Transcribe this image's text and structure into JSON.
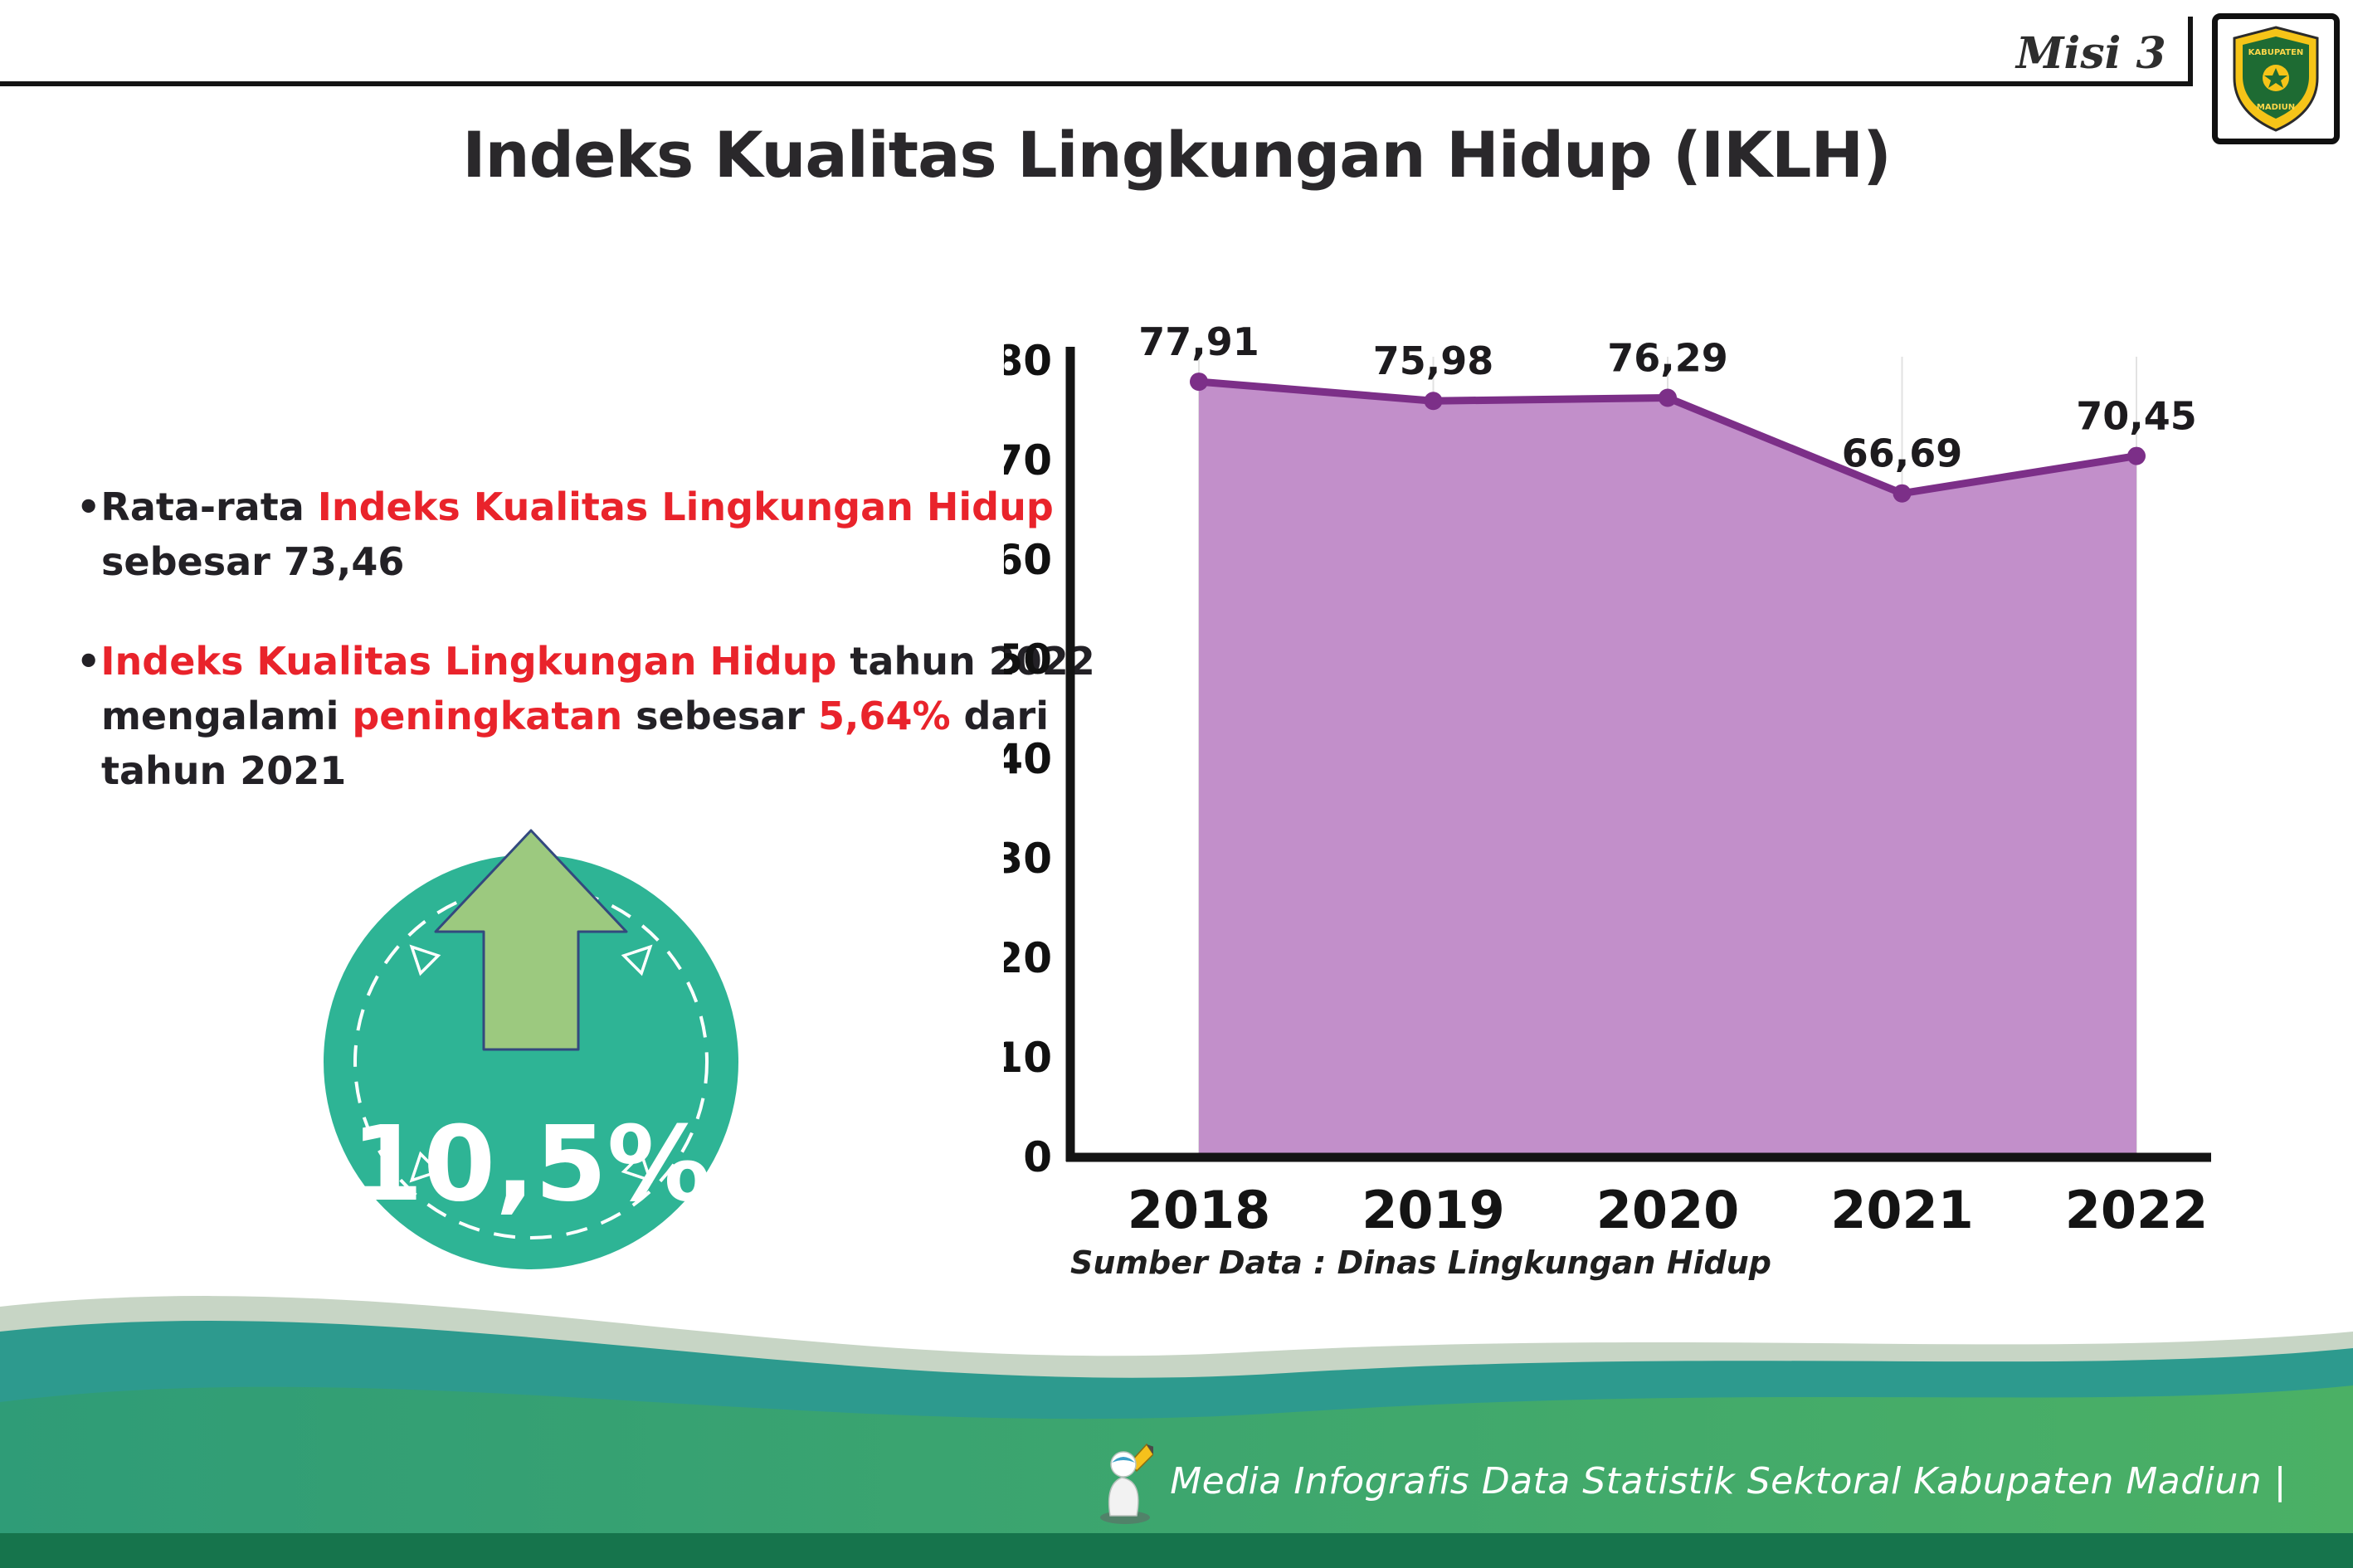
{
  "page": {
    "misi_label": "Misi 3",
    "title": "Indeks Kualitas Lingkungan Hidup (IKLH)"
  },
  "logo": {
    "line1": "KABUPATEN",
    "line2": "MADIUN"
  },
  "bullets": {
    "b1": {
      "l1a": "•Rata-rata ",
      "l1b": "Indeks Kualitas Lingkungan Hidup",
      "l2": "sebesar 73,46"
    },
    "b2": {
      "l1a": "•",
      "l1b": "Indeks Kualitas Lingkungan Hidup",
      "l1c": " tahun 2022",
      "l2a": "mengalami ",
      "l2b": "peningkatan",
      "l2c": " sebesar ",
      "l2d": "5,64%",
      "l2e": " dari",
      "l3": "tahun 2021"
    }
  },
  "badge": {
    "value": "10,5%",
    "direction": "up"
  },
  "chart_data": {
    "type": "area",
    "title": "",
    "categories": [
      "2018",
      "2019",
      "2020",
      "2021",
      "2022"
    ],
    "values": [
      77.91,
      75.98,
      76.29,
      66.69,
      70.45
    ],
    "value_labels": [
      "77,91",
      "75,98",
      "76,29",
      "66,69",
      "70,45"
    ],
    "ylim": [
      0,
      80
    ],
    "ytick_step": 10,
    "legend": "none",
    "grid": "light-vertical",
    "source": "Sumber Data : Dinas Lingkungan Hidup",
    "colors": {
      "fill": "#c28fca",
      "line": "#7c2f88",
      "point": "#7c2f88",
      "axis": "#141414"
    }
  },
  "footer": {
    "text": "Media Infografis Data Statistik Sektoral Kabupaten Madiun |"
  },
  "colors": {
    "accent_red": "#e9232b",
    "badge_teal": "#2eb495",
    "arrow_green": "#9cc97f",
    "footer_teal": "#2d9a8e",
    "footer_green": "#3ca56a",
    "footer_dark_green": "#16744c",
    "chart_purple_fill": "#c28fca",
    "chart_purple_line": "#7c2f88"
  }
}
